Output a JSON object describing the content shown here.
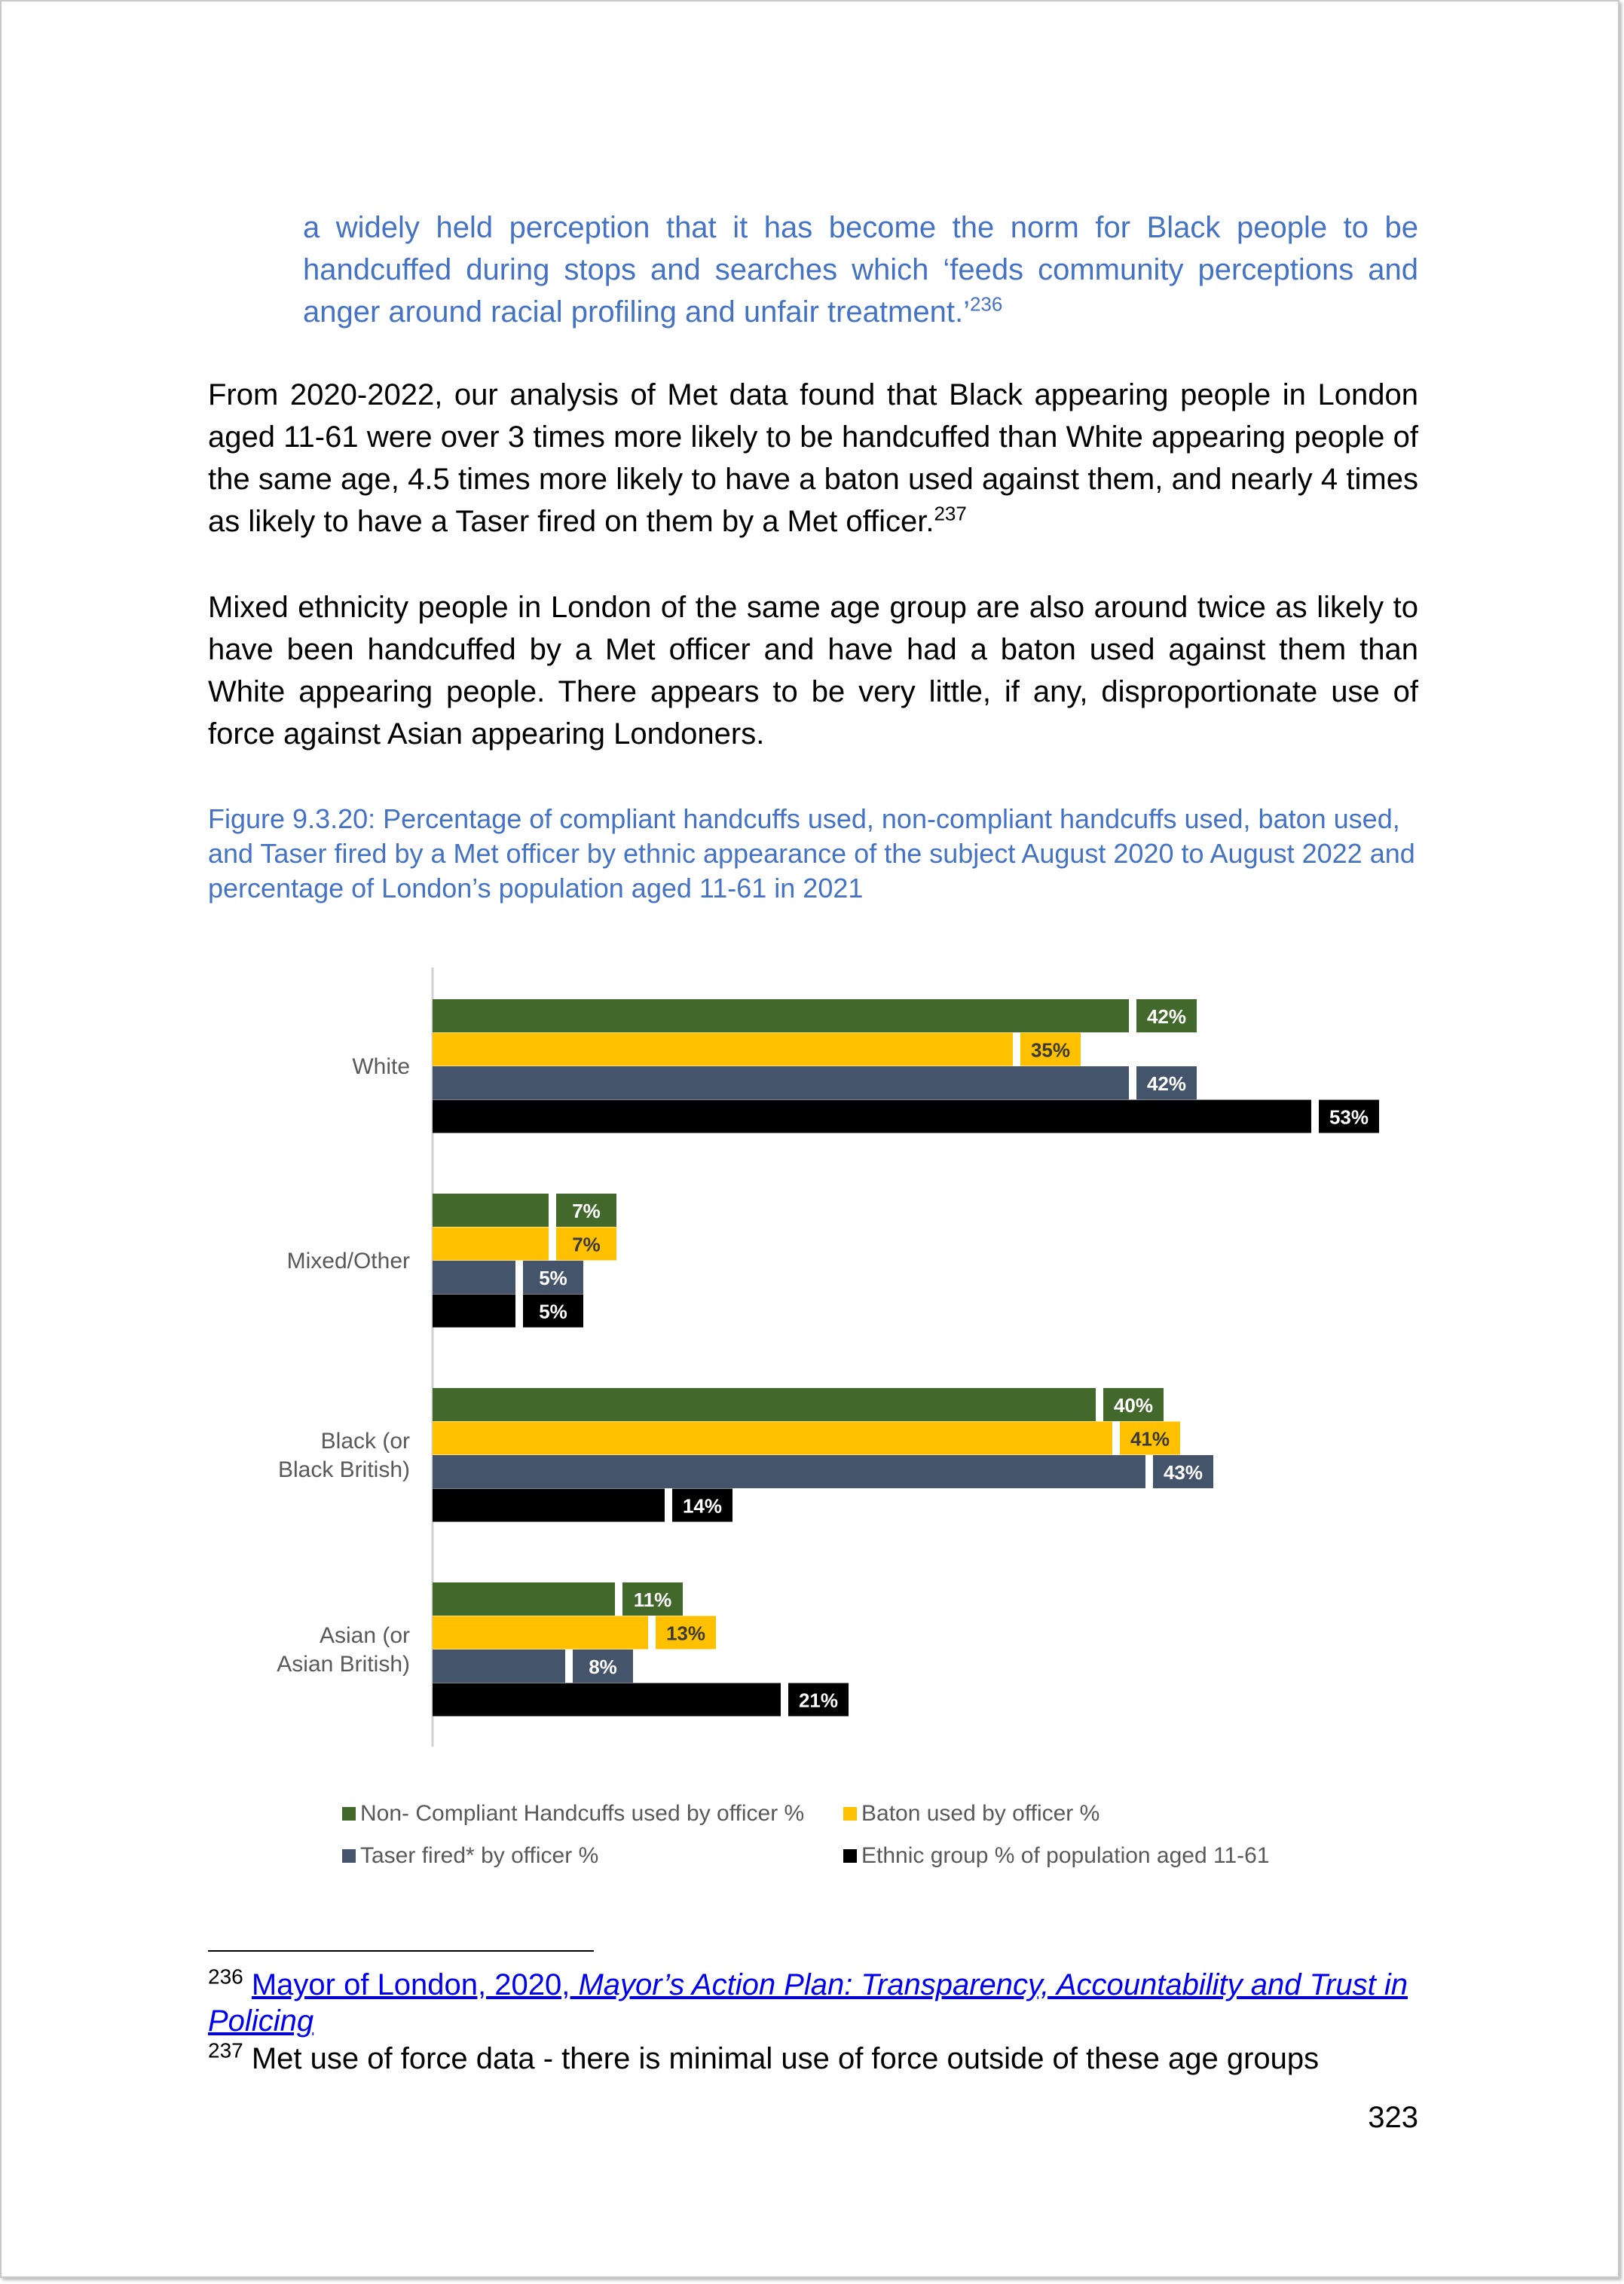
{
  "quote": {
    "text": "a widely held perception that it has become the norm for Black people to be handcuffed during stops and searches which ‘feeds community perceptions and anger around racial profiling and unfair treatment.’",
    "footnote_ref": "236"
  },
  "paragraphs": [
    {
      "text": "From 2020-2022, our analysis of Met data found that Black appearing people in London aged 11-61 were over 3 times more likely to be handcuffed than White appearing people of the same age, 4.5 times more likely to have a baton used against them, and nearly 4 times as likely to have a Taser fired on them by a Met officer.",
      "footnote_ref": "237"
    },
    {
      "text": "Mixed ethnicity people in London of the same age group are also around twice as likely to have been handcuffed by a Met officer and have had a baton used against them than White appearing people. There appears to be very little, if any, disproportionate use of force against Asian appearing Londoners.",
      "footnote_ref": ""
    }
  ],
  "figure_caption": "Figure 9.3.20: Percentage of compliant handcuffs used, non-compliant handcuffs used, baton used, and Taser fired by a Met officer by ethnic appearance of the subject August 2020 to August 2022 and percentage of London’s population aged 11-61 in 2021",
  "chart_data": {
    "type": "bar",
    "orientation": "horizontal",
    "categories": [
      "White",
      "Mixed/Other",
      "Black (or Black British)",
      "Asian (or Asian British)"
    ],
    "series": [
      {
        "name": "Non- Compliant Handcuffs used by officer %",
        "color": "#43682b",
        "values": [
          42,
          7,
          40,
          11
        ],
        "labels": [
          "42%",
          "7%",
          "40%",
          "11%"
        ]
      },
      {
        "name": "Baton used by officer %",
        "color": "#ffc000",
        "values": [
          35,
          7,
          41,
          13
        ],
        "labels": [
          "35%",
          "7%",
          "41%",
          "13%"
        ]
      },
      {
        "name": "Taser fired* by officer %",
        "color": "#44546a",
        "values": [
          42,
          5,
          43,
          8
        ],
        "labels": [
          "42%",
          "5%",
          "43%",
          "8%"
        ]
      },
      {
        "name": "Ethnic group % of population aged 11-61",
        "color": "#000000",
        "values": [
          53,
          5,
          14,
          21
        ],
        "labels": [
          "53%",
          "5%",
          "14%",
          "21%"
        ]
      }
    ],
    "xlim": [
      0,
      60
    ],
    "legend_position": "bottom",
    "grid": false
  },
  "footnotes": [
    {
      "number": "236",
      "link_plain": "Mayor of London, 2020, ",
      "link_italic": "Mayor’s Action Plan: Transparency, Accountability and Trust in Policing"
    },
    {
      "number": "237",
      "text": "Met use of force data - there is minimal use of force outside of these age groups"
    }
  ],
  "page_number": "323"
}
